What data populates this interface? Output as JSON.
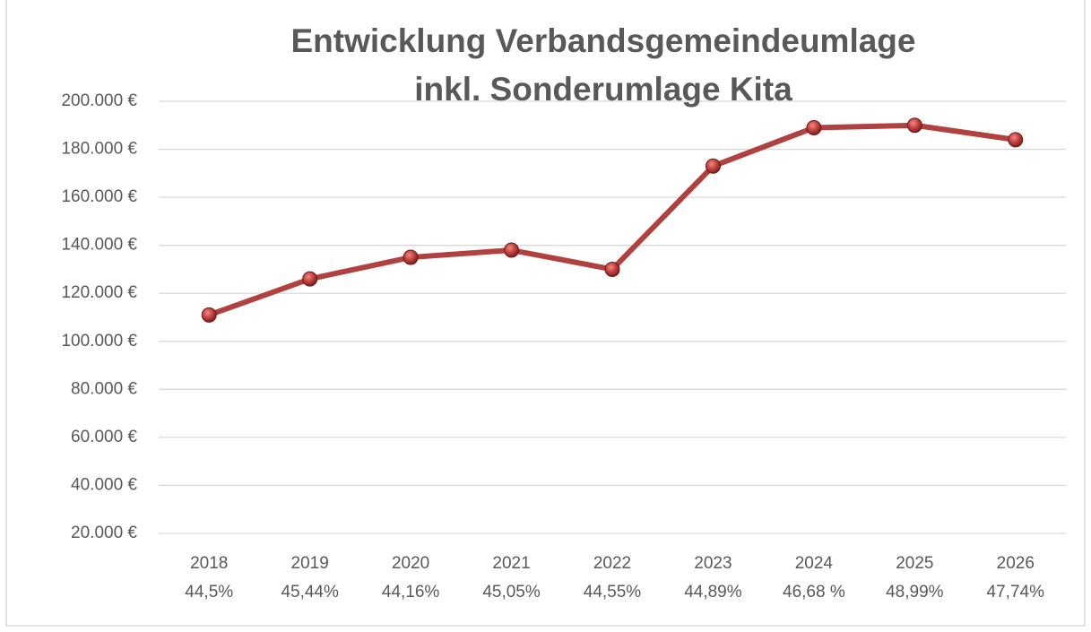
{
  "chart_data": {
    "type": "line",
    "title": [
      "Entwicklung Verbandsgemeindeumlage",
      "inkl. Sonderumlage Kita"
    ],
    "categories": [
      "2018",
      "2019",
      "2020",
      "2021",
      "2022",
      "2023",
      "2024",
      "2025",
      "2026"
    ],
    "category_sublabels": [
      "44,5%",
      "45,44%",
      "44,16%",
      "45,05%",
      "44,55%",
      "44,89%",
      "46,68 %",
      "48,99%",
      "47,74%"
    ],
    "series": [
      {
        "color": "#b0413e",
        "values": [
          111000,
          126000,
          135000,
          138000,
          130000,
          173000,
          189000,
          190000,
          184000
        ]
      }
    ],
    "ylim": [
      20000,
      200000
    ],
    "yticks": [
      {
        "value": 20000,
        "label": "20.000 €"
      },
      {
        "value": 40000,
        "label": "40.000 €"
      },
      {
        "value": 60000,
        "label": "60.000 €"
      },
      {
        "value": 80000,
        "label": "80.000 €"
      },
      {
        "value": 100000,
        "label": "100.000 €"
      },
      {
        "value": 120000,
        "label": "120.000 €"
      },
      {
        "value": 140000,
        "label": "140.000 €"
      },
      {
        "value": 160000,
        "label": "160.000 €"
      },
      {
        "value": 180000,
        "label": "180.000 €"
      },
      {
        "value": 200000,
        "label": "200.000 €"
      }
    ],
    "grid": true
  }
}
